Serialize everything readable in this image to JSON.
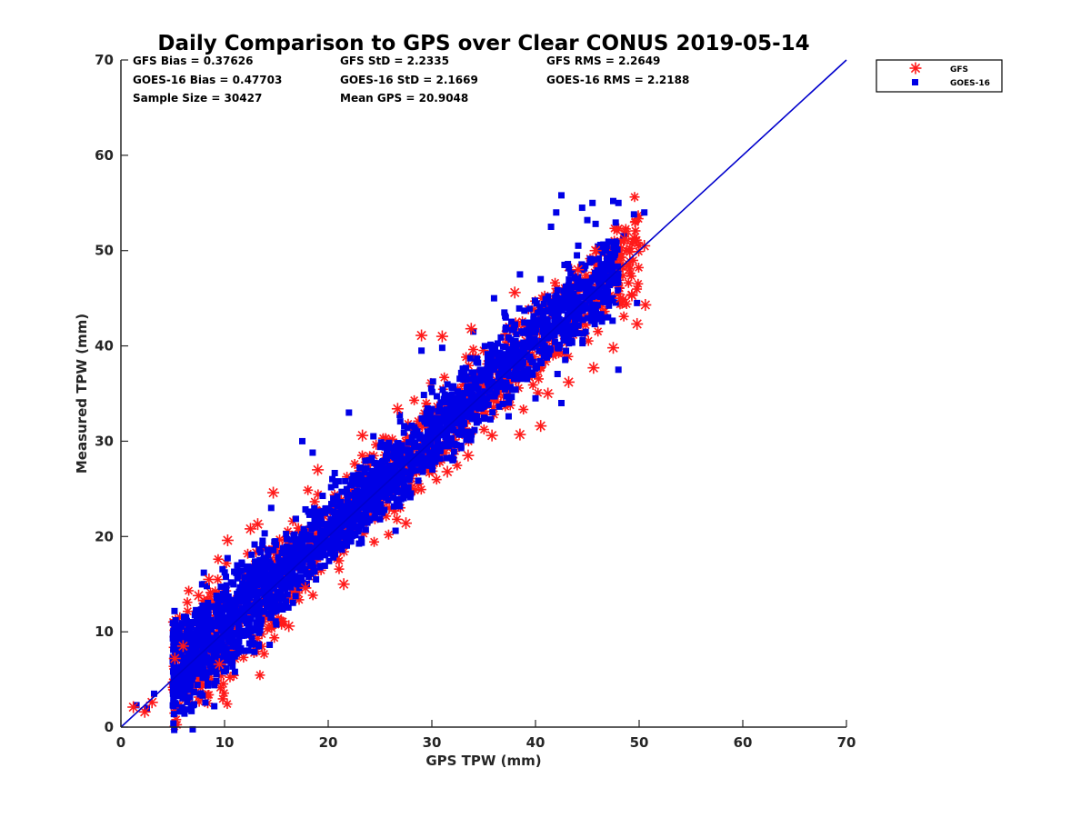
{
  "chart_data": {
    "type": "scatter",
    "title": "Daily Comparison to GPS over Clear CONUS 2019-05-14",
    "xlabel": "GPS TPW (mm)",
    "ylabel": "Measured TPW (mm)",
    "xlim": [
      0,
      70
    ],
    "ylim": [
      0,
      70
    ],
    "xticks": [
      "0",
      "10",
      "20",
      "30",
      "40",
      "50",
      "60",
      "70"
    ],
    "yticks": [
      "0",
      "10",
      "20",
      "30",
      "40",
      "50",
      "60",
      "70"
    ],
    "legend_position": "outside-top-right",
    "stats": [
      "GFS Bias = 0.37626",
      "GFS StD = 2.2335",
      "GFS RMS = 2.2649",
      "GOES-16 Bias = 0.47703",
      "GOES-16 StD = 2.1669",
      "GOES-16 RMS = 2.2188",
      "Sample Size = 30427",
      "Mean GPS = 20.9048"
    ],
    "reference_line": {
      "name": "1:1 line",
      "x": [
        0,
        70
      ],
      "y": [
        0,
        70
      ],
      "color": "#0000cc"
    },
    "series": [
      {
        "name": "GFS",
        "marker": "asterisk",
        "color": "#ff1a1a",
        "points": [
          [
            1.2,
            2.1
          ],
          [
            2.3,
            1.6
          ],
          [
            3.0,
            2.6
          ],
          [
            5.2,
            7.2
          ],
          [
            6.0,
            8.5
          ],
          [
            7.5,
            13.8
          ],
          [
            8.5,
            15.5
          ],
          [
            10.3,
            19.6
          ],
          [
            12.5,
            20.8
          ],
          [
            13.2,
            21.3
          ],
          [
            14.7,
            24.6
          ],
          [
            16.2,
            10.6
          ],
          [
            17.8,
            14.6
          ],
          [
            21.5,
            15.0
          ],
          [
            23.3,
            30.6
          ],
          [
            26.7,
            33.4
          ],
          [
            27.5,
            21.4
          ],
          [
            29.0,
            41.1
          ],
          [
            31.0,
            41.0
          ],
          [
            31.5,
            26.8
          ],
          [
            33.5,
            28.5
          ],
          [
            35.8,
            30.6
          ],
          [
            38.5,
            30.7
          ],
          [
            40.5,
            31.6
          ],
          [
            41.2,
            35.0
          ],
          [
            43.2,
            36.2
          ],
          [
            45.6,
            37.7
          ],
          [
            47.5,
            39.8
          ],
          [
            48.2,
            45.0
          ],
          [
            48.6,
            51.2
          ],
          [
            49.3,
            45.3
          ],
          [
            49.8,
            42.3
          ],
          [
            49.5,
            51.3
          ],
          [
            50.5,
            50.5
          ],
          [
            50.6,
            44.3
          ],
          [
            45.8,
            50.0
          ],
          [
            44.1,
            48.0
          ],
          [
            38.0,
            45.6
          ],
          [
            33.8,
            41.8
          ],
          [
            19.0,
            27.0
          ],
          [
            9.5,
            6.6
          ]
        ]
      },
      {
        "name": "GOES-16",
        "marker": "square",
        "color": "#0000e6",
        "points": [
          [
            1.5,
            2.3
          ],
          [
            2.5,
            2.0
          ],
          [
            3.2,
            3.5
          ],
          [
            8.0,
            16.2
          ],
          [
            11.0,
            5.8
          ],
          [
            17.5,
            30.0
          ],
          [
            18.5,
            28.8
          ],
          [
            22.0,
            33.0
          ],
          [
            29.0,
            39.5
          ],
          [
            31.0,
            39.8
          ],
          [
            32.0,
            28.0
          ],
          [
            34.0,
            41.5
          ],
          [
            36.0,
            45.0
          ],
          [
            37.0,
            43.5
          ],
          [
            38.5,
            47.5
          ],
          [
            40.5,
            47.0
          ],
          [
            41.5,
            52.5
          ],
          [
            42.0,
            54.0
          ],
          [
            42.5,
            55.8
          ],
          [
            44.5,
            54.5
          ],
          [
            45.5,
            55.0
          ],
          [
            45.0,
            53.2
          ],
          [
            45.8,
            52.8
          ],
          [
            47.5,
            55.2
          ],
          [
            48.0,
            55.0
          ],
          [
            50.5,
            54.0
          ],
          [
            49.5,
            53.8
          ],
          [
            48.5,
            51.5
          ],
          [
            46.5,
            49.8
          ],
          [
            44.0,
            49.5
          ],
          [
            42.8,
            48.5
          ],
          [
            47.0,
            43.0
          ],
          [
            49.8,
            44.5
          ],
          [
            48.0,
            37.5
          ],
          [
            40.0,
            34.5
          ],
          [
            42.5,
            34.0
          ],
          [
            26.5,
            20.6
          ],
          [
            20.5,
            17.8
          ],
          [
            14.5,
            23.0
          ],
          [
            12.0,
            8.0
          ]
        ]
      }
    ],
    "dense_band": {
      "description": "Thousands of overlapping GFS and GOES-16 markers along the 1:1 line",
      "x_range": [
        5,
        50
      ],
      "center_slope": 1.0,
      "spread": 2.2
    }
  },
  "legend": {
    "items": [
      {
        "label": "GFS",
        "marker": "asterisk",
        "color": "#ff1a1a"
      },
      {
        "label": "GOES-16",
        "marker": "square",
        "color": "#0000e6"
      }
    ]
  }
}
